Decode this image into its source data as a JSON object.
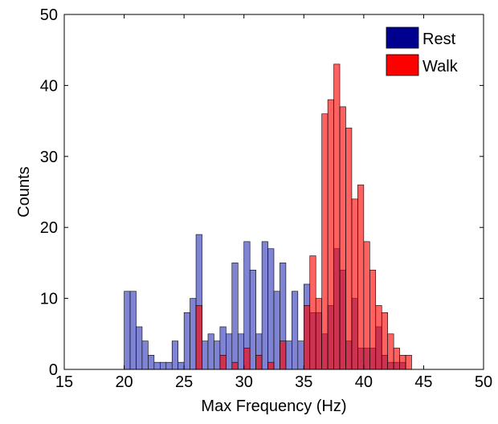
{
  "chart_data": {
    "type": "bar",
    "title": "",
    "xlabel": "Max Frequency (Hz)",
    "ylabel": "Counts",
    "xlim": [
      15,
      50
    ],
    "ylim": [
      0,
      50
    ],
    "xticks": [
      "15",
      "20",
      "25",
      "30",
      "35",
      "40",
      "45",
      "50"
    ],
    "yticks": [
      "0",
      "10",
      "20",
      "30",
      "40",
      "50"
    ],
    "grid": false,
    "legend_position": "top-right",
    "bin_width": 0.5,
    "series": [
      {
        "name": "Rest",
        "color": "#00008F",
        "x": [
          20.0,
          20.5,
          21.0,
          21.5,
          22.0,
          22.5,
          23.0,
          23.5,
          24.0,
          24.5,
          25.0,
          25.5,
          26.0,
          26.5,
          27.0,
          27.5,
          28.0,
          28.5,
          29.0,
          29.5,
          30.0,
          30.5,
          31.0,
          31.5,
          32.0,
          32.5,
          33.0,
          33.5,
          34.0,
          34.5,
          35.0,
          35.5,
          36.0,
          36.5,
          37.0,
          37.5,
          38.0,
          38.5,
          39.0,
          39.5,
          40.0,
          40.5,
          41.0,
          41.5,
          42.0,
          42.5,
          43.0,
          43.5
        ],
        "values": [
          11,
          11,
          6,
          4,
          2,
          1,
          1,
          1,
          4,
          1,
          8,
          10,
          19,
          4,
          5,
          4,
          6,
          5,
          15,
          5,
          18,
          14,
          5,
          18,
          17,
          11,
          15,
          4,
          11,
          4,
          12,
          8,
          8,
          5,
          9,
          17,
          14,
          4,
          10,
          3,
          3,
          3,
          6,
          2,
          1,
          1,
          1,
          0
        ]
      },
      {
        "name": "Walk",
        "color": "#FF0000",
        "x": [
          20.0,
          20.5,
          21.0,
          21.5,
          22.0,
          22.5,
          23.0,
          23.5,
          24.0,
          24.5,
          25.0,
          25.5,
          26.0,
          26.5,
          27.0,
          27.5,
          28.0,
          28.5,
          29.0,
          29.5,
          30.0,
          30.5,
          31.0,
          31.5,
          32.0,
          32.5,
          33.0,
          33.5,
          34.0,
          34.5,
          35.0,
          35.5,
          36.0,
          36.5,
          37.0,
          37.5,
          38.0,
          38.5,
          39.0,
          39.5,
          40.0,
          40.5,
          41.0,
          41.5,
          42.0,
          42.5,
          43.0,
          43.5
        ],
        "values": [
          0,
          0,
          0,
          0,
          0,
          0,
          0,
          0,
          0,
          0,
          0,
          0,
          9,
          0,
          0,
          0,
          2,
          0,
          1,
          0,
          3,
          0,
          2,
          0,
          1,
          0,
          4,
          0,
          0,
          0,
          9,
          16,
          10,
          36,
          38,
          43,
          37,
          34,
          24,
          26,
          18,
          14,
          9,
          8,
          5,
          3,
          2,
          2
        ]
      }
    ]
  }
}
